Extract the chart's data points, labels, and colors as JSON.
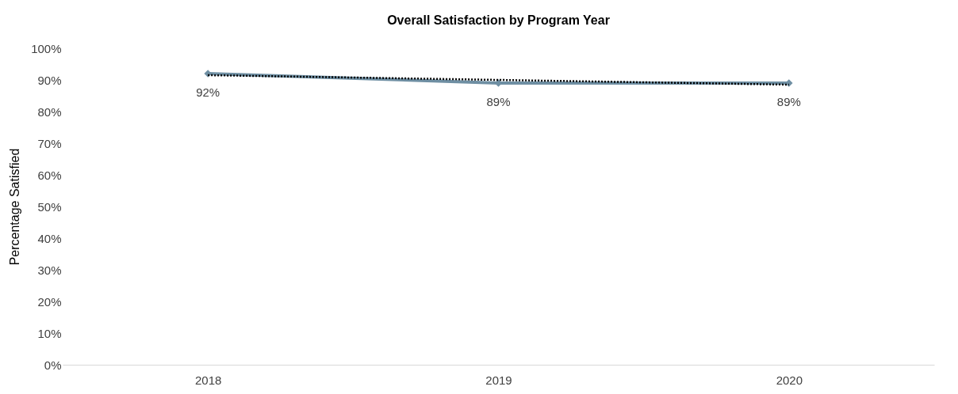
{
  "chart_data": {
    "type": "line",
    "title": "Overall Satisfaction by Program Year",
    "ylabel": "Percentage Satisfied",
    "categories": [
      "2018",
      "2019",
      "2020"
    ],
    "series": [
      {
        "color": "#6f8fa3",
        "values": [
          92,
          89,
          89
        ],
        "marker": "diamond",
        "line_style": "solid",
        "value_labels": [
          "92%",
          "89%",
          "89%"
        ]
      },
      {
        "type": "line",
        "color": "#000000",
        "values": [
          91.5,
          90,
          88.5
        ],
        "marker": "none",
        "line_style": "dotted"
      }
    ],
    "ylim": [
      0,
      100
    ],
    "yticks": [
      {
        "value": 0,
        "label": "0%"
      },
      {
        "value": 10,
        "label": "10%"
      },
      {
        "value": 20,
        "label": "20%"
      },
      {
        "value": 30,
        "label": "30%"
      },
      {
        "value": 40,
        "label": "40%"
      },
      {
        "value": 50,
        "label": "50%"
      },
      {
        "value": 60,
        "label": "60%"
      },
      {
        "value": 70,
        "label": "70%"
      },
      {
        "value": 80,
        "label": "80%"
      },
      {
        "value": 90,
        "label": "90%"
      },
      {
        "value": 100,
        "label": "100%"
      }
    ],
    "grid": false
  }
}
